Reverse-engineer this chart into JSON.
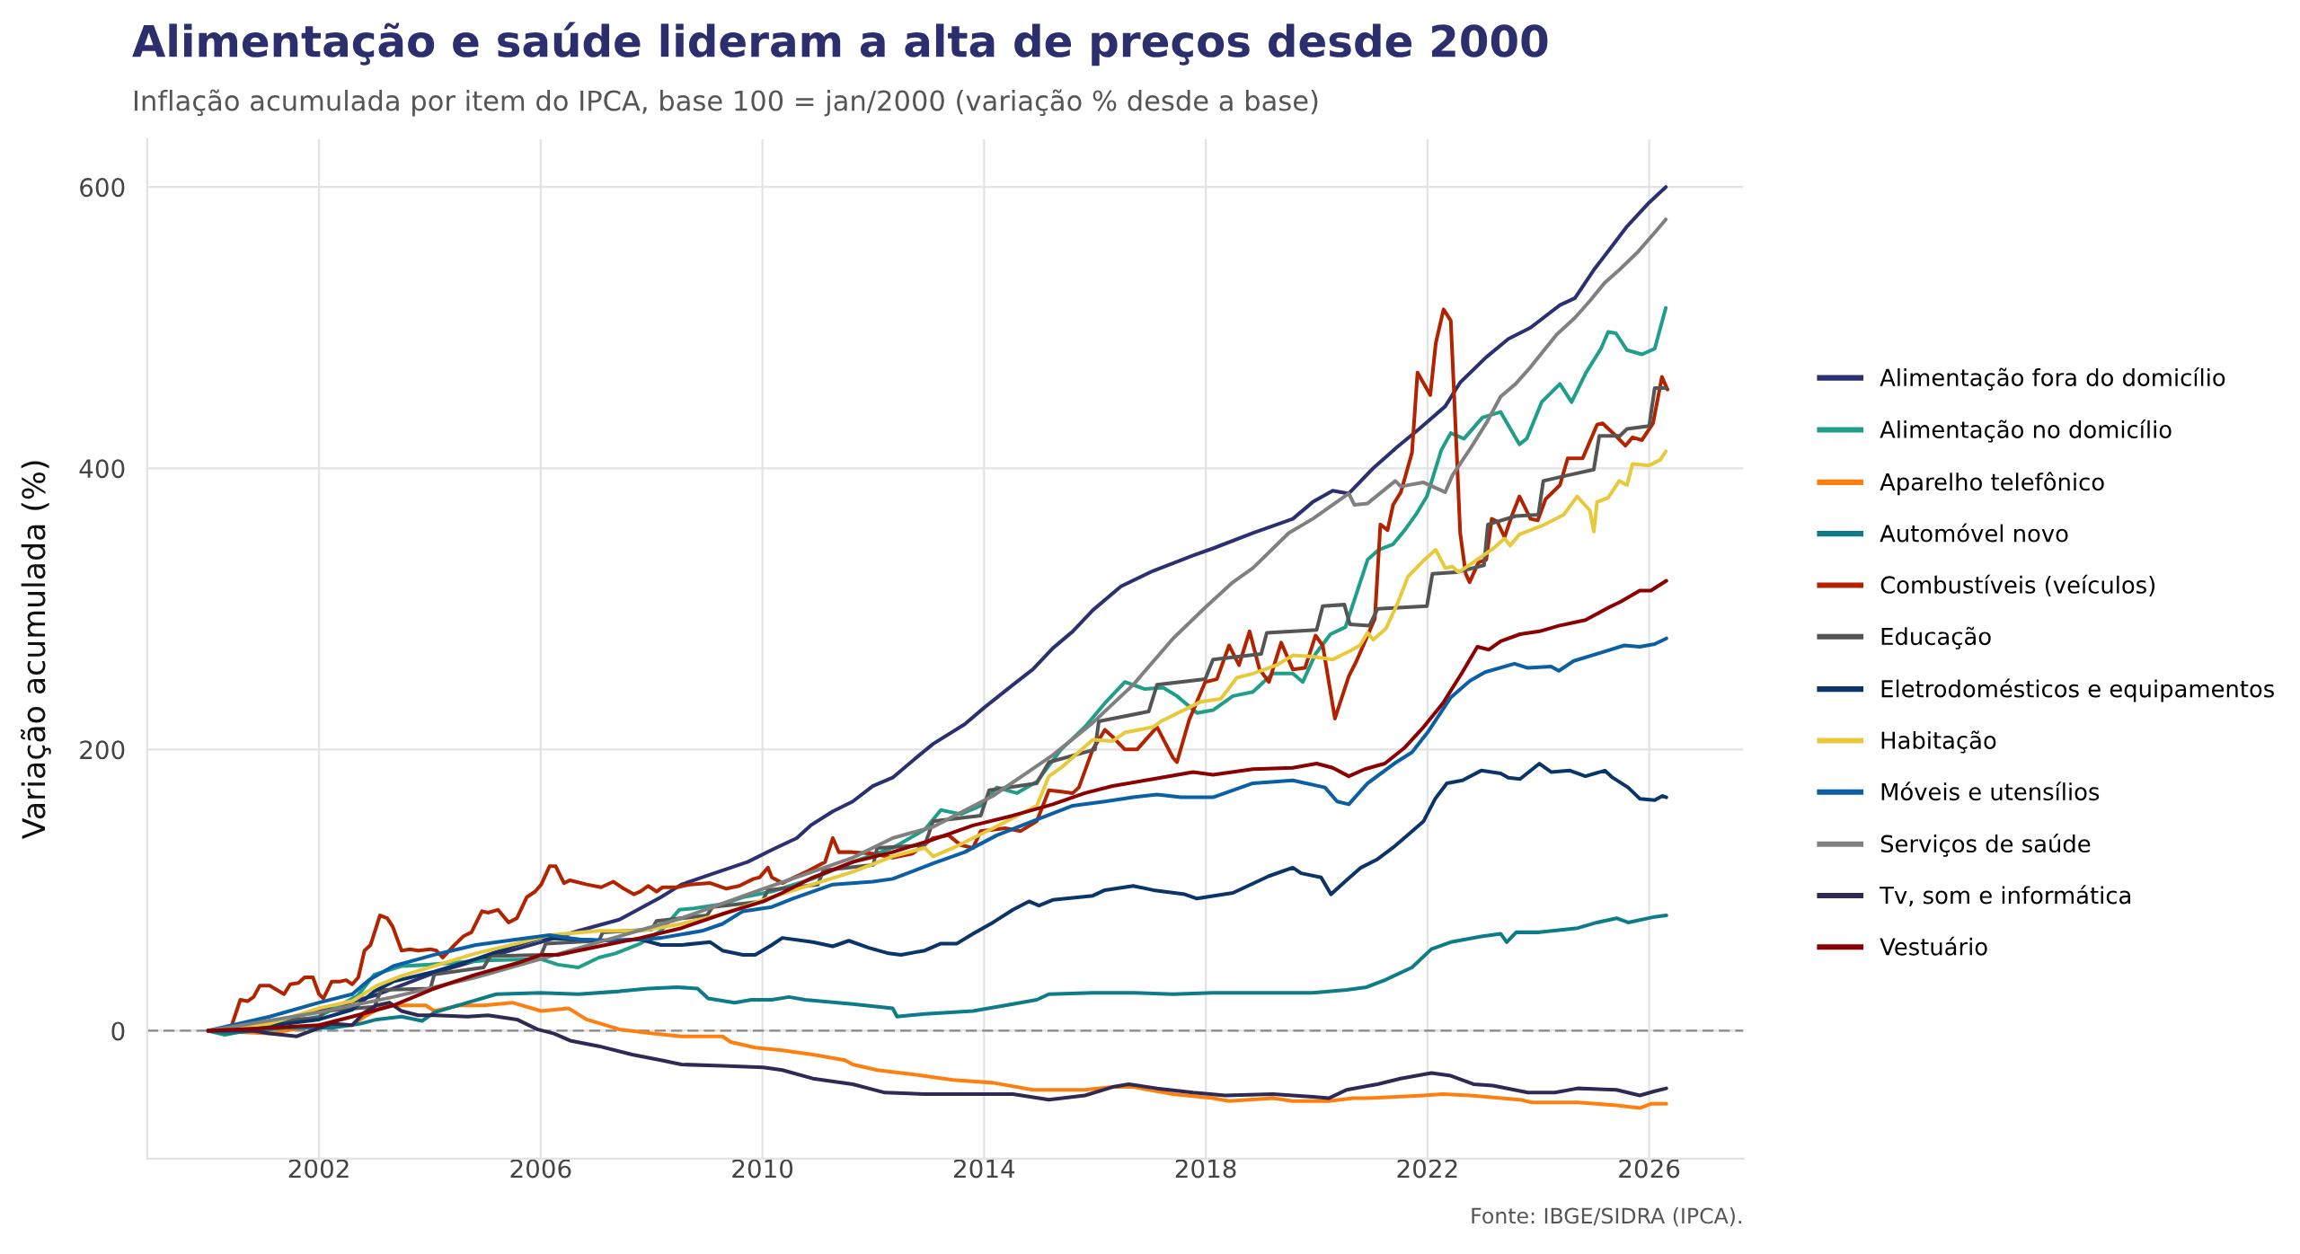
{
  "chart_data": {
    "type": "line",
    "title": "Alimentação e saúde lideram a alta de preços desde 2000",
    "subtitle": "Inflação acumulada por item do IPCA, base 100 = jan/2000 (variação % desde a base)",
    "ylabel": "Variação acumulada (%)",
    "annotations": [
      "Fonte: IBGE/SIDRA (IPCA)."
    ],
    "xlim": [
      1998.9,
      2027.7
    ],
    "ylim": [
      -91,
      634
    ],
    "xticks": [
      2002,
      2006,
      2010,
      2014,
      2018,
      2022,
      2026
    ],
    "yticks": [
      0,
      200,
      400,
      600
    ],
    "grid": true,
    "legend": "right",
    "ref_lines": [
      {
        "axis": "y",
        "value": 0,
        "color": "#888888",
        "line_style": "dashed"
      }
    ],
    "series": [
      {
        "name": "Alimentação fora do domicílio",
        "color": "#2b3070",
        "x": [
          2000.0,
          2001.0,
          2002.0,
          2003.0,
          2004.0,
          2005.0,
          2006.0,
          2006.68,
          2007.42,
          2008.17,
          2008.54,
          2009.13,
          2009.73,
          2010.19,
          2010.62,
          2010.87,
          2011.27,
          2011.63,
          2011.99,
          2012.35,
          2012.68,
          2013.08,
          2013.65,
          2014.01,
          2014.52,
          2014.88,
          2015.24,
          2015.6,
          2015.96,
          2016.47,
          2017.05,
          2017.77,
          2018.13,
          2018.85,
          2019.57,
          2019.93,
          2020.29,
          2020.58,
          2021.02,
          2021.45,
          2021.85,
          2022.32,
          2022.59,
          2023.06,
          2023.46,
          2023.86,
          2024.39,
          2024.66,
          2025.0,
          2025.33,
          2025.6,
          2026.0,
          2026.3
        ],
        "values": [
          0,
          5,
          14,
          25,
          40,
          52,
          63,
          71,
          79,
          95,
          104,
          112,
          120,
          129,
          137,
          146,
          156,
          163,
          174,
          180,
          191,
          204,
          218,
          230,
          246,
          257,
          272,
          284,
          299,
          316,
          327,
          338,
          343,
          354,
          364,
          376,
          384,
          382,
          400,
          415,
          428,
          444,
          461,
          479,
          492,
          500,
          516,
          521,
          541,
          558,
          572,
          589,
          600
        ]
      },
      {
        "name": "Alimentação no domicílio",
        "color": "#1f9e89",
        "x": [
          2000.0,
          2000.3,
          2001.0,
          2002.0,
          2002.7,
          2003.0,
          2003.5,
          2004.0,
          2005.0,
          2006.0,
          2006.31,
          2006.68,
          2007.05,
          2007.35,
          2007.8,
          2008.17,
          2008.5,
          2008.76,
          2009.28,
          2009.65,
          2010.17,
          2010.9,
          2011.63,
          2012.35,
          2012.93,
          2013.22,
          2013.58,
          2013.94,
          2014.23,
          2014.59,
          2014.95,
          2015.39,
          2015.82,
          2016.18,
          2016.54,
          2016.9,
          2017.23,
          2017.48,
          2017.84,
          2018.13,
          2018.49,
          2018.85,
          2019.21,
          2019.57,
          2019.75,
          2019.98,
          2020.25,
          2020.52,
          2020.72,
          2020.92,
          2021.12,
          2021.38,
          2021.59,
          2021.79,
          2021.99,
          2022.25,
          2022.42,
          2022.66,
          2022.99,
          2023.32,
          2023.66,
          2023.79,
          2024.06,
          2024.39,
          2024.6,
          2024.86,
          2025.13,
          2025.26,
          2025.4,
          2025.6,
          2025.87,
          2026.1,
          2026.3
        ],
        "values": [
          0,
          -3,
          3,
          10,
          25,
          40,
          46,
          47,
          50,
          51,
          47,
          45,
          52,
          55,
          62,
          71,
          86,
          87,
          90,
          95,
          99,
          108,
          120,
          130,
          143,
          157,
          154,
          160,
          173,
          169,
          177,
          200,
          216,
          233,
          248,
          243,
          244,
          238,
          226,
          228,
          238,
          241,
          254,
          254,
          248,
          268,
          282,
          287,
          311,
          335,
          342,
          346,
          356,
          367,
          380,
          413,
          425,
          421,
          436,
          440,
          417,
          421,
          447,
          460,
          447,
          468,
          485,
          497,
          496,
          484,
          481,
          485,
          514
        ]
      },
      {
        "name": "Aparelho telefônico",
        "color": "#ff7f0e",
        "x": [
          2000.0,
          2001.1,
          2002.0,
          2002.6,
          2002.82,
          2003.19,
          2003.93,
          2004.08,
          2004.53,
          2004.97,
          2005.49,
          2006.01,
          2006.5,
          2006.83,
          2007.42,
          2008.02,
          2008.54,
          2008.91,
          2009.28,
          2009.43,
          2009.87,
          2010.36,
          2010.91,
          2011.49,
          2011.63,
          2012.07,
          2012.71,
          2013.44,
          2014.16,
          2014.88,
          2015.82,
          2016.32,
          2016.69,
          2017.41,
          2018.13,
          2018.42,
          2019.21,
          2019.57,
          2020.22,
          2020.66,
          2020.89,
          2021.45,
          2021.93,
          2022.28,
          2022.77,
          2023.67,
          2023.88,
          2024.71,
          2025.41,
          2025.83,
          2026.03,
          2026.31
        ],
        "values": [
          0,
          -2,
          4,
          4,
          10,
          18,
          18,
          14,
          18,
          18,
          20,
          14,
          16,
          8,
          1,
          -2,
          -4,
          -4,
          -4,
          -8,
          -12,
          -14,
          -17,
          -21,
          -24,
          -28,
          -31,
          -35,
          -37,
          -42,
          -42,
          -40,
          -40,
          -45,
          -48,
          -50,
          -48,
          -50,
          -50,
          -48,
          -48,
          -47,
          -46,
          -45,
          -46,
          -49,
          -51,
          -51,
          -53,
          -55,
          -52,
          -52
        ]
      },
      {
        "name": "Automóvel novo",
        "color": "#0e7c88",
        "x": [
          2000.0,
          2000.3,
          2001.37,
          2002.23,
          2002.75,
          2003.04,
          2003.49,
          2003.86,
          2004.08,
          2004.68,
          2005.2,
          2006.0,
          2006.68,
          2007.42,
          2007.94,
          2008.46,
          2008.83,
          2009.02,
          2009.5,
          2009.8,
          2010.17,
          2010.48,
          2010.77,
          2011.63,
          2012.35,
          2012.43,
          2012.93,
          2013.8,
          2014.52,
          2014.95,
          2015.17,
          2015.96,
          2016.69,
          2017.41,
          2018.13,
          2018.85,
          2019.93,
          2020.54,
          2020.9,
          2021.23,
          2021.72,
          2022.07,
          2022.42,
          2022.97,
          2023.32,
          2023.43,
          2023.6,
          2024.02,
          2024.71,
          2025.06,
          2025.41,
          2025.62,
          2026.1,
          2026.31
        ],
        "values": [
          0,
          -2,
          2,
          2,
          5,
          8,
          10,
          7,
          13,
          20,
          26,
          27,
          26,
          28,
          30,
          31,
          30,
          23,
          20,
          22,
          22,
          24,
          22,
          19,
          16,
          10,
          12,
          14,
          19,
          22,
          26,
          27,
          27,
          26,
          27,
          27,
          27,
          29,
          31,
          36,
          45,
          58,
          63,
          67,
          69,
          63,
          70,
          70,
          73,
          77,
          80,
          77,
          81,
          82
        ]
      },
      {
        "name": "Combustíveis (veículos)",
        "color": "#b22400",
        "x": [
          2000.0,
          2000.41,
          2000.58,
          2000.71,
          2000.82,
          2000.93,
          2001.11,
          2001.37,
          2001.48,
          2001.63,
          2001.74,
          2001.89,
          2002.0,
          2002.08,
          2002.23,
          2002.38,
          2002.49,
          2002.6,
          2002.71,
          2002.82,
          2002.93,
          2003.1,
          2003.23,
          2003.33,
          2003.49,
          2003.64,
          2003.79,
          2004.01,
          2004.12,
          2004.23,
          2004.42,
          2004.6,
          2004.75,
          2004.94,
          2005.05,
          2005.23,
          2005.42,
          2005.57,
          2005.75,
          2005.9,
          2006.01,
          2006.16,
          2006.27,
          2006.42,
          2006.53,
          2006.83,
          2007.09,
          2007.31,
          2007.5,
          2007.68,
          2007.8,
          2007.94,
          2008.09,
          2008.2,
          2008.46,
          2008.69,
          2009.06,
          2009.35,
          2009.58,
          2009.84,
          2009.95,
          2010.1,
          2010.17,
          2010.36,
          2010.84,
          2011.13,
          2011.27,
          2011.38,
          2011.63,
          2011.99,
          2012.35,
          2012.71,
          2013.08,
          2013.36,
          2013.58,
          2013.8,
          2013.94,
          2014.38,
          2014.66,
          2014.95,
          2015.17,
          2015.39,
          2015.6,
          2015.71,
          2015.96,
          2016.18,
          2016.32,
          2016.54,
          2016.76,
          2017.12,
          2017.41,
          2017.48,
          2017.7,
          2017.99,
          2018.2,
          2018.42,
          2018.6,
          2018.79,
          2018.97,
          2019.14,
          2019.36,
          2019.57,
          2019.79,
          2019.98,
          2020.11,
          2020.33,
          2020.58,
          2020.72,
          2021.05,
          2021.15,
          2021.28,
          2021.38,
          2021.52,
          2021.72,
          2021.82,
          2022.05,
          2022.15,
          2022.29,
          2022.42,
          2022.52,
          2022.59,
          2022.69,
          2022.76,
          2022.92,
          2023.06,
          2023.16,
          2023.26,
          2023.39,
          2023.52,
          2023.66,
          2023.86,
          2023.99,
          2024.13,
          2024.39,
          2024.53,
          2024.8,
          2025.06,
          2025.16,
          2025.4,
          2025.57,
          2025.7,
          2025.87,
          2026.07,
          2026.23,
          2026.33
        ],
        "values": [
          0,
          2,
          22,
          21,
          24,
          32,
          32,
          26,
          33,
          34,
          38,
          38,
          26,
          23,
          35,
          35,
          36,
          33,
          38,
          57,
          61,
          82,
          80,
          74,
          57,
          58,
          57,
          58,
          57,
          52,
          60,
          67,
          70,
          85,
          84,
          86,
          77,
          80,
          95,
          99,
          104,
          117,
          117,
          105,
          107,
          104,
          102,
          106,
          101,
          97,
          99,
          103,
          99,
          102,
          102,
          104,
          105,
          101,
          103,
          108,
          109,
          116,
          109,
          105,
          114,
          120,
          137,
          127,
          127,
          126,
          123,
          126,
          137,
          139,
          132,
          130,
          142,
          144,
          142,
          149,
          171,
          170,
          169,
          173,
          200,
          214,
          209,
          200,
          200,
          216,
          194,
          191,
          221,
          248,
          250,
          274,
          260,
          284,
          257,
          248,
          276,
          257,
          258,
          281,
          274,
          222,
          252,
          263,
          293,
          360,
          356,
          374,
          383,
          411,
          468,
          452,
          489,
          513,
          505,
          418,
          354,
          325,
          319,
          333,
          335,
          364,
          362,
          351,
          366,
          380,
          364,
          363,
          378,
          388,
          407,
          407,
          431,
          432,
          423,
          416,
          422,
          420,
          432,
          465,
          456
        ]
      },
      {
        "name": "Educação",
        "color": "#555555",
        "x": [
          2000.0,
          2001.0,
          2001.1,
          2002.0,
          2002.1,
          2003.0,
          2003.12,
          2004.01,
          2004.08,
          2004.97,
          2005.09,
          2006.01,
          2006.09,
          2007.05,
          2007.12,
          2008.0,
          2008.09,
          2009.0,
          2009.1,
          2010.0,
          2010.1,
          2011.0,
          2011.1,
          2012.0,
          2012.07,
          2012.93,
          2013.08,
          2013.94,
          2014.09,
          2014.95,
          2015.17,
          2016.0,
          2016.07,
          2016.97,
          2017.12,
          2017.99,
          2018.13,
          2019.0,
          2019.1,
          2020.0,
          2020.11,
          2020.5,
          2020.6,
          2020.95,
          2021.1,
          2021.99,
          2022.09,
          2022.52,
          2023.02,
          2023.09,
          2023.59,
          2024.0,
          2024.09,
          2024.53,
          2025.0,
          2025.1,
          2025.47,
          2025.6,
          2026.0,
          2026.1,
          2026.3
        ],
        "values": [
          0,
          4,
          7,
          9,
          14,
          17,
          29,
          30,
          40,
          45,
          53,
          54,
          62,
          64,
          70,
          72,
          78,
          82,
          88,
          92,
          100,
          104,
          114,
          118,
          130,
          132,
          149,
          153,
          171,
          176,
          191,
          200,
          220,
          227,
          246,
          250,
          264,
          268,
          283,
          285,
          302,
          303,
          289,
          288,
          300,
          302,
          325,
          326,
          331,
          360,
          366,
          367,
          391,
          395,
          399,
          423,
          423,
          428,
          430,
          457,
          457
        ]
      },
      {
        "name": "Eletrodomésticos e equipamentos",
        "color": "#0b3468",
        "x": [
          2000.0,
          2001.0,
          2002.0,
          2002.6,
          2003.0,
          2003.34,
          2004.08,
          2004.83,
          2005.57,
          2006.01,
          2006.68,
          2007.05,
          2007.8,
          2008.17,
          2008.54,
          2009.06,
          2009.28,
          2009.65,
          2009.87,
          2010.17,
          2010.36,
          2010.91,
          2011.27,
          2011.56,
          2011.92,
          2012.28,
          2012.5,
          2012.93,
          2013.22,
          2013.51,
          2013.8,
          2014.16,
          2014.52,
          2014.81,
          2014.99,
          2015.24,
          2015.96,
          2016.18,
          2016.69,
          2017.05,
          2017.62,
          2017.84,
          2018.49,
          2019.14,
          2019.57,
          2019.72,
          2020.08,
          2020.26,
          2020.51,
          2020.8,
          2021.1,
          2021.37,
          2021.58,
          2021.93,
          2022.14,
          2022.35,
          2022.63,
          2022.97,
          2023.32,
          2023.46,
          2023.67,
          2024.02,
          2024.23,
          2024.57,
          2024.85,
          2025.2,
          2025.34,
          2025.62,
          2025.83,
          2026.1,
          2026.24,
          2026.31
        ],
        "values": [
          0,
          3,
          8,
          15,
          28,
          35,
          42,
          51,
          61,
          66,
          65,
          64,
          65,
          61,
          61,
          63,
          57,
          54,
          54,
          61,
          66,
          63,
          60,
          64,
          59,
          55,
          54,
          57,
          62,
          62,
          69,
          77,
          86,
          92,
          89,
          93,
          96,
          100,
          103,
          100,
          97,
          94,
          98,
          110,
          116,
          112,
          109,
          97,
          106,
          116,
          122,
          130,
          137,
          149,
          165,
          176,
          178,
          185,
          183,
          180,
          179,
          190,
          184,
          185,
          181,
          185,
          180,
          173,
          165,
          164,
          167,
          166
        ]
      },
      {
        "name": "Habitação",
        "color": "#e8c93c",
        "x": [
          2000.0,
          2001.11,
          2002.0,
          2002.6,
          2003.04,
          2003.49,
          2004.08,
          2004.83,
          2005.57,
          2006.16,
          2007.05,
          2007.8,
          2008.54,
          2009.28,
          2010.17,
          2010.9,
          2011.63,
          2012.35,
          2012.93,
          2013.08,
          2013.44,
          2014.16,
          2014.66,
          2014.95,
          2015.17,
          2015.39,
          2015.96,
          2016.32,
          2016.54,
          2017.05,
          2017.19,
          2017.55,
          2017.91,
          2018.27,
          2018.56,
          2018.85,
          2019.28,
          2019.57,
          2019.93,
          2020.29,
          2020.44,
          2020.6,
          2020.78,
          2020.92,
          2021.02,
          2021.25,
          2021.45,
          2021.65,
          2021.92,
          2022.15,
          2022.32,
          2022.45,
          2022.56,
          2022.86,
          2023.19,
          2023.39,
          2023.49,
          2023.66,
          2024.06,
          2024.46,
          2024.7,
          2024.93,
          2025.0,
          2025.06,
          2025.26,
          2025.46,
          2025.6,
          2025.7,
          2026.0,
          2026.2,
          2026.3
        ],
        "values": [
          0,
          5,
          16,
          21,
          32,
          39,
          46,
          55,
          62,
          68,
          71,
          71,
          76,
          83,
          95,
          104,
          113,
          124,
          130,
          124,
          130,
          144,
          154,
          160,
          181,
          187,
          207,
          206,
          212,
          216,
          220,
          227,
          234,
          236,
          251,
          254,
          260,
          267,
          266,
          264,
          267,
          270,
          274,
          283,
          278,
          286,
          303,
          323,
          334,
          342,
          329,
          330,
          326,
          334,
          343,
          350,
          345,
          353,
          359,
          367,
          380,
          370,
          355,
          376,
          379,
          391,
          388,
          403,
          402,
          406,
          412
        ]
      },
      {
        "name": "Móveis e utensílios",
        "color": "#0b5fa5",
        "x": [
          2000.0,
          2001.11,
          2002.0,
          2002.6,
          2002.9,
          2003.34,
          2004.08,
          2004.83,
          2005.57,
          2006.16,
          2006.68,
          2007.42,
          2008.17,
          2008.91,
          2009.28,
          2009.65,
          2010.17,
          2010.55,
          2011.27,
          2011.99,
          2012.35,
          2013.08,
          2013.65,
          2014.23,
          2014.88,
          2015.6,
          2016.18,
          2016.69,
          2017.12,
          2017.55,
          2018.13,
          2018.85,
          2019.57,
          2020.15,
          2020.37,
          2020.58,
          2020.92,
          2021.4,
          2021.72,
          2022.0,
          2022.42,
          2022.77,
          2023.04,
          2023.57,
          2023.81,
          2024.23,
          2024.37,
          2024.64,
          2025.06,
          2025.55,
          2025.83,
          2026.1,
          2026.31
        ],
        "values": [
          0,
          10,
          20,
          26,
          36,
          46,
          54,
          61,
          65,
          68,
          65,
          64,
          66,
          71,
          76,
          85,
          88,
          94,
          104,
          106,
          108,
          119,
          127,
          139,
          149,
          160,
          163,
          166,
          168,
          166,
          166,
          176,
          178,
          173,
          163,
          161,
          176,
          190,
          198,
          212,
          237,
          249,
          255,
          261,
          258,
          259,
          256,
          263,
          268,
          274,
          273,
          275,
          279
        ]
      },
      {
        "name": "Serviços de saúde",
        "color": "#808080",
        "x": [
          2000.0,
          2002.0,
          2003.34,
          2004.83,
          2006.0,
          2007.05,
          2008.54,
          2010.02,
          2011.63,
          2012.35,
          2013.08,
          2014.16,
          2015.24,
          2015.96,
          2016.69,
          2017.41,
          2017.99,
          2018.49,
          2018.85,
          2019.5,
          2019.93,
          2020.58,
          2020.68,
          2020.92,
          2021.42,
          2021.52,
          2021.92,
          2022.32,
          2022.45,
          2022.79,
          2023.06,
          2023.32,
          2023.59,
          2023.86,
          2024.33,
          2024.66,
          2024.93,
          2025.2,
          2025.46,
          2025.8,
          2026.13,
          2026.3
        ],
        "values": [
          0,
          13,
          24,
          38,
          51,
          63,
          80,
          101,
          123,
          137,
          145,
          167,
          196,
          219,
          246,
          279,
          301,
          319,
          329,
          354,
          364,
          382,
          374,
          375,
          391,
          387,
          390,
          383,
          395,
          415,
          432,
          451,
          460,
          472,
          495,
          507,
          519,
          532,
          541,
          554,
          569,
          577
        ]
      },
      {
        "name": "Tv, som e informática",
        "color": "#2e2a54",
        "x": [
          2000.0,
          2000.82,
          2001.11,
          2001.6,
          2002.0,
          2002.23,
          2002.6,
          2002.82,
          2003.04,
          2003.27,
          2003.49,
          2003.79,
          2004.08,
          2004.68,
          2005.05,
          2005.57,
          2005.94,
          2006.24,
          2006.53,
          2007.05,
          2007.65,
          2008.17,
          2008.54,
          2009.28,
          2010.02,
          2010.36,
          2010.91,
          2011.63,
          2012.21,
          2012.93,
          2014.16,
          2014.52,
          2015.17,
          2015.82,
          2016.32,
          2016.61,
          2017.12,
          2017.77,
          2018.35,
          2019.21,
          2019.93,
          2020.22,
          2020.54,
          2021.1,
          2021.51,
          2022.07,
          2022.42,
          2022.83,
          2023.18,
          2023.81,
          2024.3,
          2024.71,
          2025.41,
          2025.83,
          2026.1,
          2026.31
        ],
        "values": [
          0,
          0,
          -2,
          -4,
          2,
          5,
          4,
          13,
          18,
          20,
          14,
          11,
          11,
          10,
          11,
          8,
          1,
          -2,
          -7,
          -11,
          -17,
          -21,
          -24,
          -25,
          -26,
          -28,
          -34,
          -38,
          -44,
          -45,
          -45,
          -45,
          -49,
          -46,
          -40,
          -38,
          -41,
          -44,
          -46,
          -45,
          -47,
          -48,
          -42,
          -38,
          -34,
          -30,
          -32,
          -38,
          -39,
          -44,
          -44,
          -41,
          -42,
          -46,
          -43,
          -41
        ]
      },
      {
        "name": "Vestuário",
        "color": "#8b0000",
        "x": [
          2000.0,
          2001.11,
          2002.0,
          2002.6,
          2003.34,
          2004.08,
          2004.83,
          2005.57,
          2006.01,
          2006.31,
          2007.05,
          2007.8,
          2008.54,
          2009.28,
          2010.02,
          2010.36,
          2010.91,
          2011.63,
          2012.35,
          2013.08,
          2013.8,
          2014.52,
          2015.24,
          2015.82,
          2016.32,
          2017.05,
          2017.77,
          2018.13,
          2018.85,
          2019.57,
          2020.0,
          2020.29,
          2020.58,
          2020.87,
          2021.23,
          2021.58,
          2021.93,
          2022.28,
          2022.63,
          2022.9,
          2023.11,
          2023.32,
          2023.67,
          2024.02,
          2024.37,
          2024.85,
          2025.27,
          2025.48,
          2025.83,
          2026.03,
          2026.31
        ],
        "values": [
          0,
          2,
          4,
          10,
          18,
          30,
          40,
          48,
          54,
          54,
          60,
          66,
          73,
          83,
          92,
          98,
          109,
          120,
          127,
          136,
          146,
          153,
          161,
          169,
          174,
          179,
          184,
          182,
          186,
          187,
          190,
          187,
          181,
          186,
          190,
          201,
          216,
          233,
          255,
          273,
          271,
          277,
          282,
          284,
          288,
          292,
          301,
          305,
          313,
          313,
          320
        ]
      }
    ]
  }
}
